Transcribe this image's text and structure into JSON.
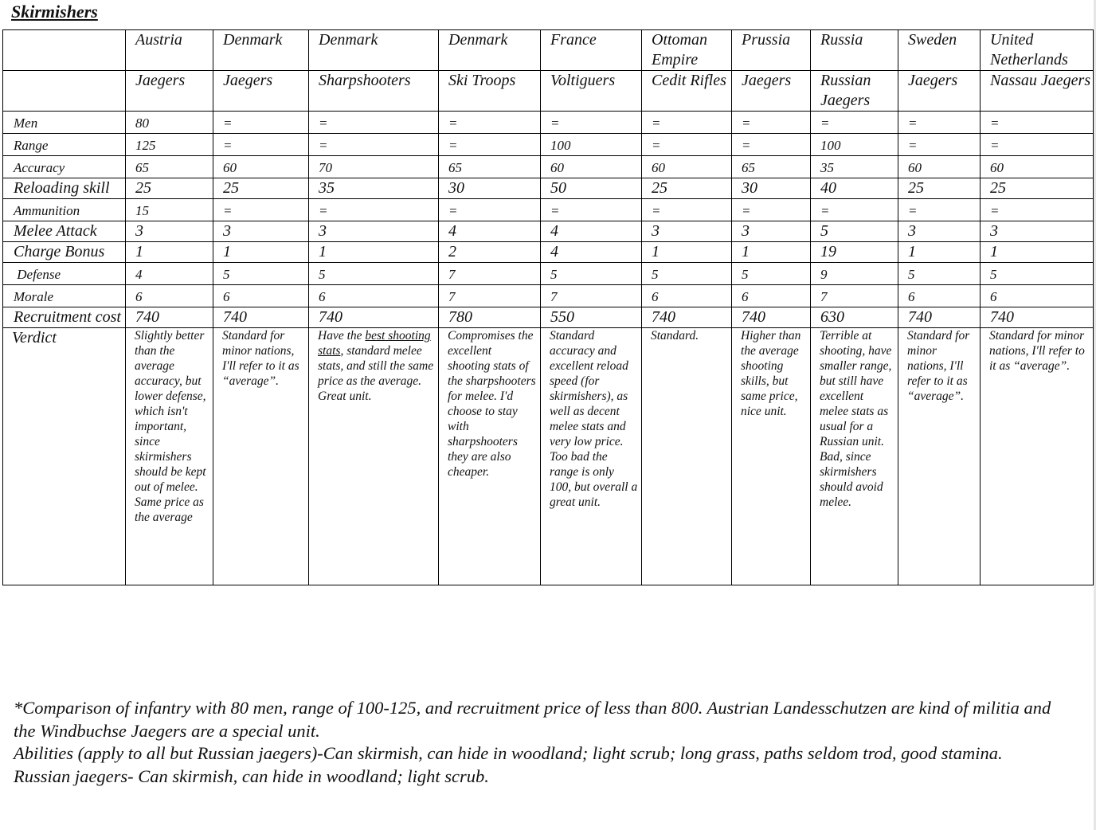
{
  "title": "Skirmishers",
  "table": {
    "nations": [
      "Austria",
      "Denmark",
      "Denmark",
      "Denmark",
      "France",
      "Ottoman Empire",
      "Prussia",
      "Russia",
      "Sweden",
      "United Netherlands"
    ],
    "units": [
      "Jaegers",
      "Jaegers",
      "Sharpshooters",
      "Ski Troops",
      "Voltiguers",
      "Cedit Rifles",
      "Jaegers",
      "Russian Jaegers",
      "Jaegers",
      "Nassau Jaegers"
    ],
    "rows": [
      {
        "label": "Men",
        "cells": [
          "80",
          "=",
          "=",
          "=",
          "=",
          "=",
          "=",
          "=",
          "=",
          "="
        ]
      },
      {
        "label": "Range",
        "cells": [
          "125",
          "=",
          "=",
          "=",
          "100",
          "=",
          "=",
          "100",
          "=",
          "="
        ]
      },
      {
        "label": "Accuracy",
        "cells": [
          "65",
          "60",
          "70",
          "65",
          "60",
          "60",
          "65",
          "35",
          "60",
          "60"
        ]
      },
      {
        "label": "Reloading skill",
        "cells": [
          "25",
          "25",
          "35",
          "30",
          "50",
          "25",
          "30",
          "40",
          "25",
          "25"
        ]
      },
      {
        "label": "Ammunition",
        "cells": [
          "15",
          "=",
          "=",
          "=",
          "=",
          "=",
          "=",
          "=",
          "=",
          "="
        ]
      },
      {
        "label": "Melee Attack",
        "cells": [
          "3",
          "3",
          "3",
          "4",
          "4",
          "3",
          "3",
          "5",
          "3",
          "3"
        ]
      },
      {
        "label": "Charge Bonus",
        "cells": [
          "1",
          "1",
          "1",
          "2",
          "4",
          "1",
          "1",
          "19",
          "1",
          "1"
        ]
      },
      {
        "label": " Defense",
        "cells": [
          "4",
          "5",
          "5",
          "7",
          "5",
          "5",
          "5",
          "9",
          "5",
          "5"
        ]
      },
      {
        "label": "Morale",
        "cells": [
          "6",
          "6",
          "6",
          "7",
          "7",
          "6",
          "6",
          "7",
          "6",
          "6"
        ]
      },
      {
        "label": "Recruitment cost",
        "cells": [
          "740",
          "740",
          "740",
          "780",
          "550",
          "740",
          "740",
          "630",
          "740",
          "740"
        ]
      },
      {
        "label": "Verdict",
        "cells": [
          "Slightly better than the average accuracy, but lower defense, which isn't important, since skirmishers should be kept out of melee. Same price as the average",
          "Standard for minor nations, I'll refer to it as “average”.",
          [
            "Have the ",
            "best shooting stats",
            ", standard melee stats, and still the same price as the average. Great unit."
          ],
          "Compromises the excellent shooting stats of the sharpshooters for melee. I'd choose to stay with sharpshooters they are also cheaper.",
          "Standard accuracy and excellent reload speed (for skirmishers), as well as decent melee stats and very low price. Too bad the range is only 100, but overall a great unit.",
          "Standard.",
          "Higher than the average shooting skills, but same price, nice unit.",
          "Terrible at shooting, have smaller range, but still have excellent melee stats as usual for a Russian unit. Bad, since skirmishers should avoid melee.",
          "Standard for minor nations, I'll refer to it as “average”.",
          "Standard for minor nations, I'll refer to it as “average”."
        ]
      }
    ]
  },
  "notes": [
    "*Comparison of infantry with 80 men, range of 100-125, and recruitment price of less than 800. Austrian Landesschutzen are kind of militia and the Windbuchse Jaegers are a special unit.",
    "Abilities (apply to all but Russian jaegers)-Can skirmish, can hide in woodland; light scrub; long grass, paths seldom trod, good stamina.",
    "Russian jaegers- Can skirmish, can hide in woodland; light scrub."
  ]
}
